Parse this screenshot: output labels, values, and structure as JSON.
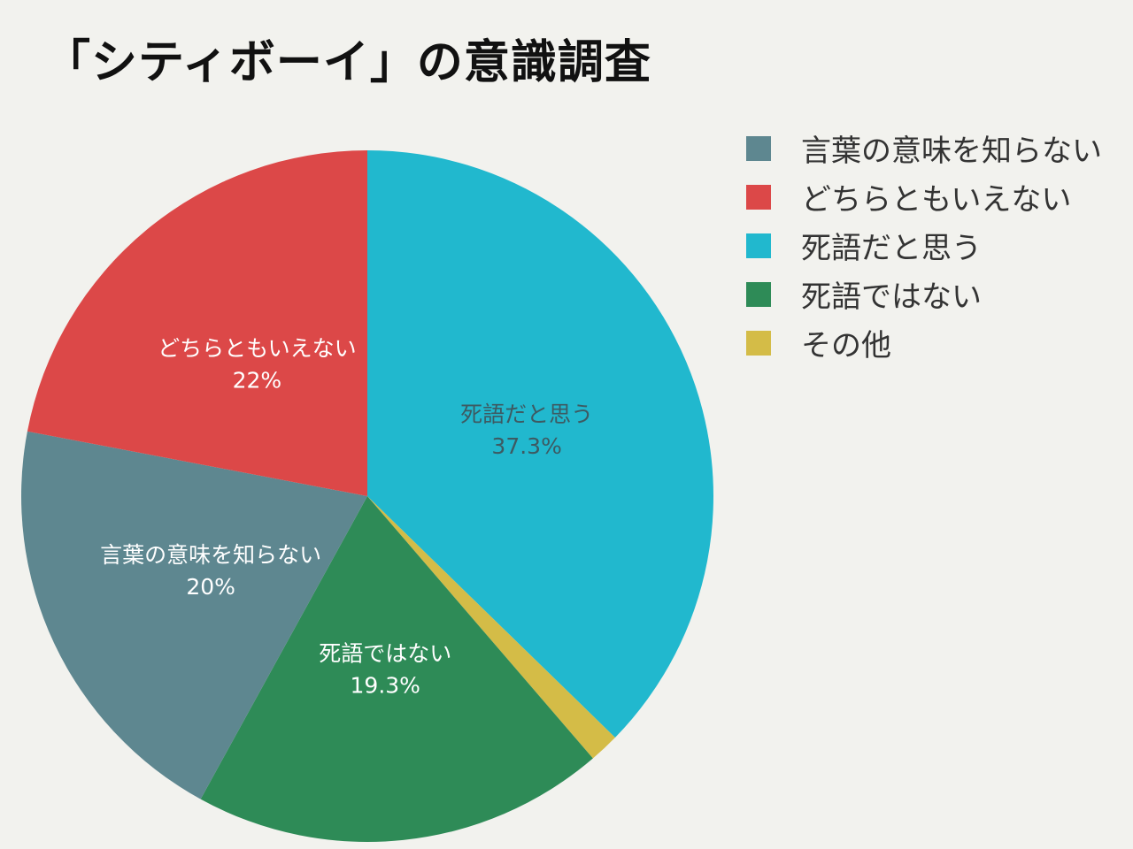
{
  "title": "「シティボーイ」の意識調査",
  "chart_data": {
    "type": "pie",
    "title": "「シティボーイ」の意識調査",
    "start_angle_deg": 0,
    "direction": "clockwise",
    "legend_position": "right",
    "slices": [
      {
        "label": "死語だと思う",
        "value": 37.3,
        "value_label": "37.3%",
        "color": "#21b8ce",
        "text_color": "#3d5a62",
        "show_label": true
      },
      {
        "label": "その他",
        "value": 1.4,
        "value_label": "",
        "color": "#d4bc47",
        "text_color": "#333333",
        "show_label": false
      },
      {
        "label": "死語ではない",
        "value": 19.3,
        "value_label": "19.3%",
        "color": "#2e8b57",
        "text_color": "#ffffff",
        "show_label": true
      },
      {
        "label": "言葉の意味を知らない",
        "value": 20,
        "value_label": "20%",
        "color": "#5e8790",
        "text_color": "#ffffff",
        "show_label": true
      },
      {
        "label": "どちらともいえない",
        "value": 22,
        "value_label": "22%",
        "color": "#dc4848",
        "text_color": "#ffffff",
        "show_label": true
      }
    ],
    "legend": [
      {
        "label": "言葉の意味を知らない",
        "color": "#5e8790"
      },
      {
        "label": "どちらともいえない",
        "color": "#dc4848"
      },
      {
        "label": "死語だと思う",
        "color": "#21b8ce"
      },
      {
        "label": "死語ではない",
        "color": "#2e8b57"
      },
      {
        "label": "その他",
        "color": "#d4bc47"
      }
    ]
  }
}
